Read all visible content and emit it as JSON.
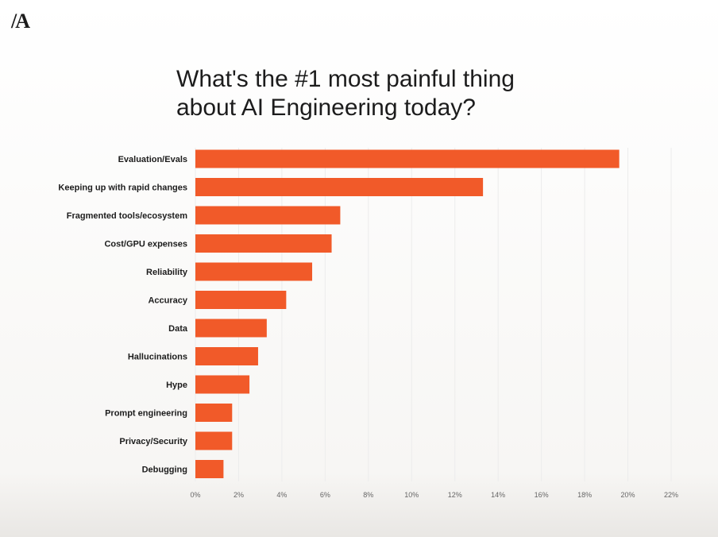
{
  "logo": {
    "text": "/A"
  },
  "title": {
    "line1": "What's the #1 most painful thing",
    "line2": "about AI Engineering today?"
  },
  "colors": {
    "bar": "#f15a29",
    "text": "#1c1c1c",
    "tick": "#666666",
    "grid": "#ececec"
  },
  "chart_data": {
    "type": "bar",
    "orientation": "horizontal",
    "title": "What's the #1 most painful thing about AI Engineering today?",
    "categories": [
      "Evaluation/Evals",
      "Keeping up with rapid changes",
      "Fragmented tools/ecosystem",
      "Cost/GPU expenses",
      "Reliability",
      "Accuracy",
      "Data",
      "Hallucinations",
      "Hype",
      "Prompt engineering",
      "Privacy/Security",
      "Debugging"
    ],
    "values": [
      19.6,
      13.3,
      6.7,
      6.3,
      5.4,
      4.2,
      3.3,
      2.9,
      2.5,
      1.7,
      1.7,
      1.3
    ],
    "xlim": [
      0,
      22
    ],
    "xticks": [
      0,
      2,
      4,
      6,
      8,
      10,
      12,
      14,
      16,
      18,
      20,
      22
    ],
    "xtick_labels": [
      "0%",
      "2%",
      "4%",
      "6%",
      "8%",
      "10%",
      "12%",
      "14%",
      "16%",
      "18%",
      "20%",
      "22%"
    ],
    "xlabel": "",
    "ylabel": "",
    "grid": true,
    "legend": "none"
  }
}
